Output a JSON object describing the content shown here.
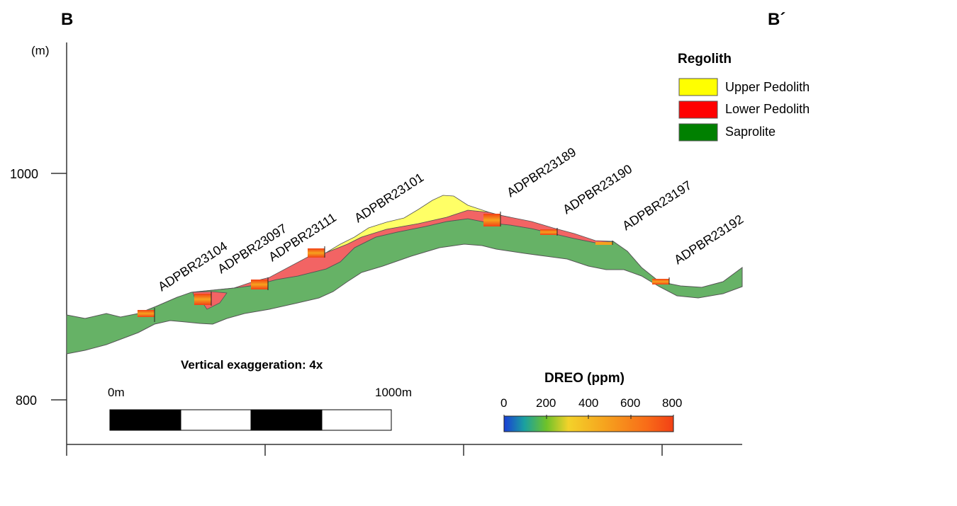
{
  "section": {
    "start_label": "B",
    "end_label": "B´"
  },
  "axis": {
    "unit": "(m)",
    "y_ticks": [
      "1000",
      "800"
    ]
  },
  "legend": {
    "title": "Regolith",
    "items": [
      {
        "label": "Upper Pedolith",
        "color": "#ffff00"
      },
      {
        "label": "Lower Pedolith",
        "color": "#ff0000"
      },
      {
        "label": "Saprolite",
        "color": "#008000"
      }
    ]
  },
  "drillholes": [
    "ADPBR23104",
    "ADPBR23097",
    "ADPBR23111",
    "ADPBR23101",
    "ADPBR23189",
    "ADPBR23190",
    "ADPBR23197",
    "ADPBR23192"
  ],
  "vertical_exaggeration": "Vertical exaggeration: 4x",
  "scale_bar": {
    "start_label": "0m",
    "end_label": "1000m"
  },
  "colorbar": {
    "title": "DREO (ppm)",
    "ticks": [
      "0",
      "200",
      "400",
      "600",
      "800"
    ]
  },
  "colors": {
    "saprolite_fill": "#66b266",
    "lower_pedolith_fill": "#f26464",
    "upper_pedolith_fill": "#ffff66"
  }
}
